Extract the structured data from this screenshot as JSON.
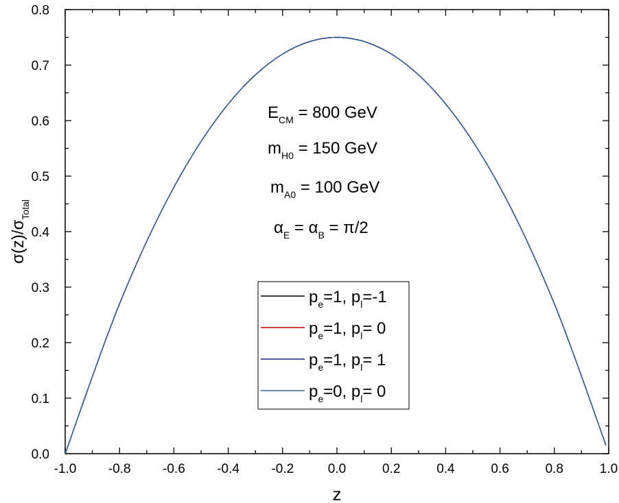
{
  "chart_data": {
    "type": "line",
    "xlabel": "z",
    "ylabel": {
      "main": "σ(z)/σ",
      "sub": "Total"
    },
    "xlim": [
      -1.0,
      1.0
    ],
    "ylim": [
      0.0,
      0.8
    ],
    "x_ticks": [
      "-1.0",
      "-0.8",
      "-0.6",
      "-0.4",
      "-0.2",
      "0.0",
      "0.2",
      "0.4",
      "0.6",
      "0.8",
      "1.0"
    ],
    "y_ticks": [
      "0.0",
      "0.1",
      "0.2",
      "0.3",
      "0.4",
      "0.5",
      "0.6",
      "0.7",
      "0.8"
    ],
    "grid": false,
    "legend_position": "center-bottom",
    "annotations": [
      {
        "main": "E",
        "sub": "CM",
        "rest": " = 800 GeV"
      },
      {
        "main": "m",
        "sub": "H0",
        "rest": " = 150 GeV"
      },
      {
        "main": "m",
        "sub": "A0",
        "rest": " = 100 GeV"
      },
      {
        "main": "α",
        "sub": "E",
        "mid": " = α",
        "sub2": "B",
        "rest": " = π/2"
      }
    ],
    "series": [
      {
        "name": {
          "p1": "p",
          "s1": "e",
          "p2": "=1, p",
          "s2": "l",
          "p3": "=-1"
        },
        "color": "#000000",
        "x": [
          -1.0,
          -0.8,
          -0.6,
          -0.4,
          -0.2,
          0.0,
          0.2,
          0.4,
          0.6,
          0.8,
          0.99
        ],
        "y": [
          0.0,
          0.27,
          0.48,
          0.63,
          0.72,
          0.75,
          0.72,
          0.63,
          0.48,
          0.27,
          0.015
        ]
      },
      {
        "name": {
          "p1": "p",
          "s1": "e",
          "p2": "=1, p",
          "s2": "l",
          "p3": "= 0"
        },
        "color": "#cc0000",
        "x": [
          -1.0,
          -0.8,
          -0.6,
          -0.4,
          -0.2,
          0.0,
          0.2,
          0.4,
          0.6,
          0.8,
          0.99
        ],
        "y": [
          0.0,
          0.27,
          0.48,
          0.63,
          0.72,
          0.75,
          0.72,
          0.63,
          0.48,
          0.27,
          0.015
        ]
      },
      {
        "name": {
          "p1": "p",
          "s1": "e",
          "p2": "=1, p",
          "s2": "l",
          "p3": "= 1"
        },
        "color": "#1a1a8c",
        "x": [
          -1.0,
          -0.8,
          -0.6,
          -0.4,
          -0.2,
          0.0,
          0.2,
          0.4,
          0.6,
          0.8,
          0.99
        ],
        "y": [
          0.0,
          0.27,
          0.48,
          0.63,
          0.72,
          0.75,
          0.72,
          0.63,
          0.48,
          0.27,
          0.015
        ]
      },
      {
        "name": {
          "p1": "p",
          "s1": "e",
          "p2": "=0, p",
          "s2": "l",
          "p3": "= 0"
        },
        "color": "#336699",
        "x": [
          -1.0,
          -0.8,
          -0.6,
          -0.4,
          -0.2,
          0.0,
          0.2,
          0.4,
          0.6,
          0.8,
          0.99
        ],
        "y": [
          0.0,
          0.27,
          0.48,
          0.63,
          0.72,
          0.75,
          0.72,
          0.63,
          0.48,
          0.27,
          0.015
        ]
      }
    ]
  }
}
